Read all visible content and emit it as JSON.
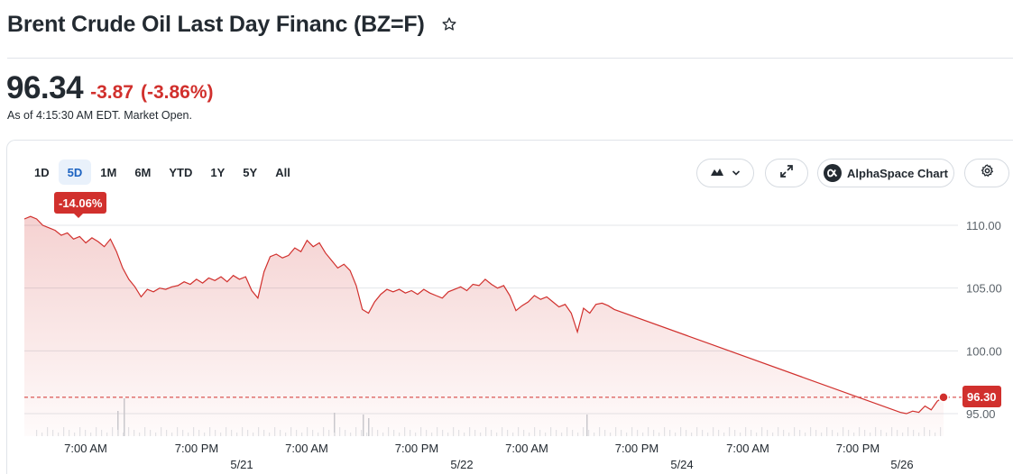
{
  "header": {
    "title": "Brent Crude Oil Last Day Financ (BZ=F)",
    "star_icon": "star-outline-icon"
  },
  "quote": {
    "price": "96.34",
    "change": "-3.87",
    "change_percent": "(-3.86%)",
    "as_of": "As of 4:15:30 AM EDT. Market Open."
  },
  "ranges": [
    "1D",
    "5D",
    "1M",
    "6M",
    "YTD",
    "1Y",
    "5Y",
    "All"
  ],
  "active_range": "5D",
  "toolbar": {
    "chart_type_icon": "mountain-chart-icon",
    "dropdown_icon": "chevron-down-icon",
    "expand_icon": "expand-arrows-icon",
    "alphaspace_label": "AlphaSpace Chart",
    "alphaspace_icon": "alpha-logo-icon",
    "settings_icon": "gear-icon"
  },
  "period_change_badge": "-14.06%",
  "last_price_tag": "96.30",
  "colors": {
    "negative": "#d1302d",
    "active_tab_bg": "#e9f1fb",
    "active_tab_text": "#1d63c1"
  },
  "chart_data": {
    "type": "area",
    "y_ticks": [
      "110.00",
      "105.00",
      "100.00",
      "95.00"
    ],
    "ylim": [
      95,
      110
    ],
    "x_time_labels": [
      "7:00 AM",
      "7:00 PM",
      "7:00 AM",
      "7:00 PM",
      "7:00 AM",
      "7:00 PM",
      "7:00 AM",
      "7:00 PM"
    ],
    "x_date_labels": [
      "5/21",
      "5/22",
      "5/24",
      "5/26"
    ],
    "reference_line_value": 96.3,
    "last_value": 96.3,
    "series": [
      {
        "values": [
          110.5,
          110.7,
          110.5,
          110.0,
          109.8,
          109.6,
          109.2,
          109.4,
          108.9,
          109.1,
          108.6,
          109.0,
          108.7,
          108.3,
          108.9,
          107.9,
          106.6,
          105.7,
          105.1,
          104.3,
          104.9,
          104.7,
          105.0,
          104.9,
          105.1,
          105.2,
          105.5,
          105.3,
          105.7,
          105.4,
          105.8,
          105.6,
          105.9,
          105.5,
          106.0,
          105.7,
          105.9,
          104.8,
          104.2,
          106.3,
          107.5,
          107.7,
          107.4,
          107.6,
          108.2,
          107.9,
          108.8,
          108.3,
          108.6,
          107.8,
          107.2,
          106.6,
          106.9,
          106.4,
          105.2,
          103.3,
          103.0,
          103.9,
          104.5,
          104.9,
          104.7,
          104.9,
          104.6,
          104.8,
          104.5,
          104.9,
          104.6,
          104.4,
          104.2,
          104.7,
          104.9,
          105.1,
          104.8,
          105.3,
          105.2,
          105.7,
          105.3,
          105.0,
          105.2,
          104.4,
          103.2,
          103.6,
          103.9,
          104.4,
          104.1,
          104.3,
          103.9,
          103.5,
          103.7,
          103.0,
          101.5,
          103.4,
          103.0,
          103.7,
          103.8,
          103.6,
          103.3,
          95.1,
          95.0,
          95.2,
          95.1,
          95.6,
          95.3,
          96.0,
          96.3
        ]
      }
    ]
  }
}
